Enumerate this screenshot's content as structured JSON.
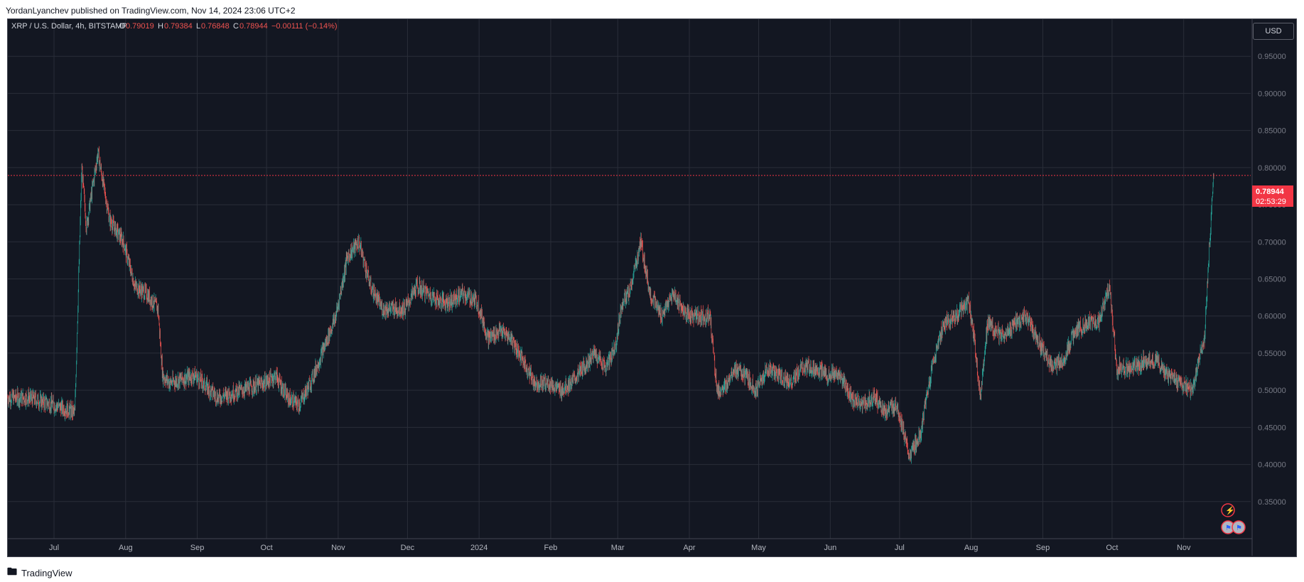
{
  "header": {
    "published": "YordanLyanchev published on TradingView.com, Nov 14, 2024 23:06 UTC+2"
  },
  "footer": {
    "brand": "TradingView",
    "logo_icon": "tradingview-logo-icon"
  },
  "colors": {
    "background": "#131722",
    "grid": "#2a2e39",
    "up": "#26a69a",
    "down": "#ef5350",
    "price_tag": "#f23645"
  },
  "legend": {
    "symbol": "XRP / U.S. Dollar, 4h, BITSTAMP",
    "open_label": "O",
    "open": "0.79019",
    "high_label": "H",
    "high": "0.79384",
    "low_label": "L",
    "low": "0.76848",
    "close_label": "C",
    "close": "0.78944",
    "change": "−0.00111 (−0.14%)"
  },
  "currency_button": "USD",
  "price_tag": {
    "price": "0.78944",
    "countdown": "02:53:29"
  },
  "chart_data": {
    "type": "line",
    "title": "XRP / U.S. Dollar, 4h, BITSTAMP",
    "y_scale_side": "right",
    "ylim": [
      0.3,
      1.0
    ],
    "y_ticks": [
      "0.95000",
      "0.90000",
      "0.85000",
      "0.80000",
      "0.75000",
      "0.70000",
      "0.65000",
      "0.60000",
      "0.55000",
      "0.50000",
      "0.45000",
      "0.40000",
      "0.35000"
    ],
    "x_labels": [
      "Jul",
      "Aug",
      "Sep",
      "Oct",
      "Nov",
      "Dec",
      "2024",
      "Feb",
      "Mar",
      "Apr",
      "May",
      "Jun",
      "Jul",
      "Aug",
      "Sep",
      "Oct",
      "Nov"
    ],
    "x_dates": [
      "2023-07-01",
      "2023-08-01",
      "2023-09-01",
      "2023-10-01",
      "2023-11-01",
      "2023-12-01",
      "2024-01-01",
      "2024-02-01",
      "2024-03-01",
      "2024-04-01",
      "2024-05-01",
      "2024-06-01",
      "2024-07-01",
      "2024-08-01",
      "2024-09-01",
      "2024-10-01",
      "2024-11-01"
    ],
    "x_range": [
      "2023-06-11",
      "2024-11-30"
    ],
    "last_price": 0.78944,
    "series": [
      {
        "values": [
          [
            "2023-06-11",
            0.49
          ],
          [
            "2023-06-20",
            0.49
          ],
          [
            "2023-07-01",
            0.48
          ],
          [
            "2023-07-10",
            0.47
          ],
          [
            "2023-07-13",
            0.8
          ],
          [
            "2023-07-15",
            0.72
          ],
          [
            "2023-07-20",
            0.82
          ],
          [
            "2023-07-25",
            0.73
          ],
          [
            "2023-07-31",
            0.7
          ],
          [
            "2023-08-05",
            0.64
          ],
          [
            "2023-08-10",
            0.63
          ],
          [
            "2023-08-15",
            0.61
          ],
          [
            "2023-08-17",
            0.52
          ],
          [
            "2023-08-20",
            0.51
          ],
          [
            "2023-08-31",
            0.52
          ],
          [
            "2023-09-10",
            0.49
          ],
          [
            "2023-09-20",
            0.5
          ],
          [
            "2023-09-30",
            0.51
          ],
          [
            "2023-10-05",
            0.52
          ],
          [
            "2023-10-10",
            0.49
          ],
          [
            "2023-10-15",
            0.48
          ],
          [
            "2023-10-20",
            0.51
          ],
          [
            "2023-10-25",
            0.55
          ],
          [
            "2023-10-31",
            0.6
          ],
          [
            "2023-11-05",
            0.68
          ],
          [
            "2023-11-10",
            0.7
          ],
          [
            "2023-11-15",
            0.64
          ],
          [
            "2023-11-20",
            0.61
          ],
          [
            "2023-11-25",
            0.61
          ],
          [
            "2023-11-30",
            0.61
          ],
          [
            "2023-12-05",
            0.64
          ],
          [
            "2023-12-10",
            0.63
          ],
          [
            "2023-12-15",
            0.62
          ],
          [
            "2023-12-20",
            0.62
          ],
          [
            "2023-12-25",
            0.63
          ],
          [
            "2023-12-31",
            0.62
          ],
          [
            "2024-01-05",
            0.57
          ],
          [
            "2024-01-10",
            0.58
          ],
          [
            "2024-01-15",
            0.57
          ],
          [
            "2024-01-20",
            0.54
          ],
          [
            "2024-01-25",
            0.51
          ],
          [
            "2024-01-31",
            0.51
          ],
          [
            "2024-02-05",
            0.5
          ],
          [
            "2024-02-10",
            0.51
          ],
          [
            "2024-02-15",
            0.53
          ],
          [
            "2024-02-20",
            0.55
          ],
          [
            "2024-02-25",
            0.53
          ],
          [
            "2024-02-29",
            0.56
          ],
          [
            "2024-03-03",
            0.62
          ],
          [
            "2024-03-06",
            0.63
          ],
          [
            "2024-03-11",
            0.7
          ],
          [
            "2024-03-15",
            0.63
          ],
          [
            "2024-03-20",
            0.6
          ],
          [
            "2024-03-25",
            0.63
          ],
          [
            "2024-03-31",
            0.6
          ],
          [
            "2024-04-05",
            0.6
          ],
          [
            "2024-04-10",
            0.6
          ],
          [
            "2024-04-13",
            0.5
          ],
          [
            "2024-04-16",
            0.5
          ],
          [
            "2024-04-20",
            0.53
          ],
          [
            "2024-04-25",
            0.52
          ],
          [
            "2024-04-30",
            0.5
          ],
          [
            "2024-05-05",
            0.53
          ],
          [
            "2024-05-10",
            0.52
          ],
          [
            "2024-05-15",
            0.51
          ],
          [
            "2024-05-20",
            0.53
          ],
          [
            "2024-05-25",
            0.53
          ],
          [
            "2024-05-31",
            0.52
          ],
          [
            "2024-06-05",
            0.52
          ],
          [
            "2024-06-10",
            0.49
          ],
          [
            "2024-06-15",
            0.48
          ],
          [
            "2024-06-20",
            0.49
          ],
          [
            "2024-06-25",
            0.47
          ],
          [
            "2024-06-30",
            0.48
          ],
          [
            "2024-07-05",
            0.41
          ],
          [
            "2024-07-10",
            0.44
          ],
          [
            "2024-07-15",
            0.53
          ],
          [
            "2024-07-20",
            0.59
          ],
          [
            "2024-07-25",
            0.6
          ],
          [
            "2024-07-31",
            0.62
          ],
          [
            "2024-08-03",
            0.55
          ],
          [
            "2024-08-05",
            0.49
          ],
          [
            "2024-08-08",
            0.59
          ],
          [
            "2024-08-15",
            0.57
          ],
          [
            "2024-08-20",
            0.59
          ],
          [
            "2024-08-25",
            0.6
          ],
          [
            "2024-08-31",
            0.56
          ],
          [
            "2024-09-05",
            0.53
          ],
          [
            "2024-09-10",
            0.54
          ],
          [
            "2024-09-15",
            0.58
          ],
          [
            "2024-09-20",
            0.59
          ],
          [
            "2024-09-25",
            0.59
          ],
          [
            "2024-09-30",
            0.64
          ],
          [
            "2024-10-03",
            0.53
          ],
          [
            "2024-10-10",
            0.53
          ],
          [
            "2024-10-15",
            0.54
          ],
          [
            "2024-10-20",
            0.54
          ],
          [
            "2024-10-25",
            0.52
          ],
          [
            "2024-10-31",
            0.51
          ],
          [
            "2024-11-05",
            0.5
          ],
          [
            "2024-11-08",
            0.55
          ],
          [
            "2024-11-10",
            0.57
          ],
          [
            "2024-11-12",
            0.69
          ],
          [
            "2024-11-13",
            0.74
          ],
          [
            "2024-11-14",
            0.78944
          ]
        ]
      }
    ],
    "grid": true
  },
  "event_icons": [
    {
      "name": "lightning-event-icon",
      "glyph": "⚡"
    },
    {
      "name": "us-flag-event-icon",
      "glyph": "⚑"
    },
    {
      "name": "us-flag-event-icon-2",
      "glyph": "⚑"
    }
  ]
}
